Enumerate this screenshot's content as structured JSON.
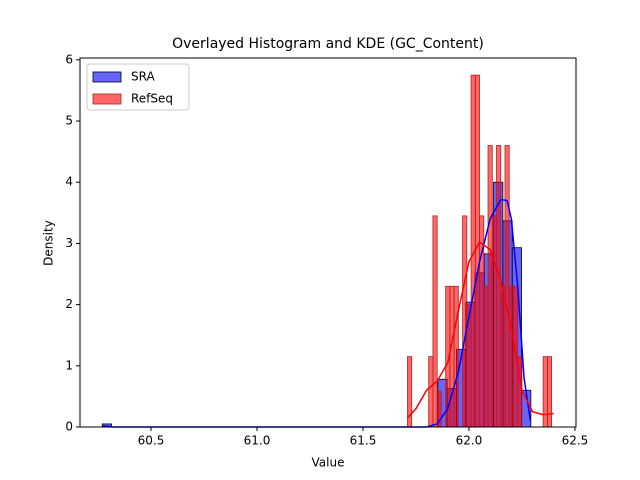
{
  "chart_data": {
    "type": "histogram",
    "title": "Overlayed Histogram and KDE (GC_Content)",
    "xlabel": "Value",
    "ylabel": "Density",
    "xlim": [
      60.165,
      62.505
    ],
    "ylim": [
      0,
      6.03
    ],
    "xticks": [
      60.5,
      {
        "value": 61,
        "label": "61.0"
      },
      61.5,
      {
        "value": 62,
        "label": "62.0"
      },
      62.5
    ],
    "yticks": [
      0,
      1,
      2,
      3,
      4,
      5,
      6
    ],
    "legend": "upper left",
    "series": [
      {
        "name": "SRA",
        "color": "blue",
        "edge": "black",
        "bins": [
          60.27,
          60.314,
          60.358,
          60.402,
          60.446,
          60.49,
          60.534,
          60.578,
          60.622,
          60.666,
          60.71,
          60.754,
          60.798,
          60.841,
          60.885,
          60.929,
          60.973,
          61.017,
          61.061,
          61.105,
          61.149,
          61.193,
          61.237,
          61.281,
          61.325,
          61.369,
          61.413,
          61.457,
          61.501,
          61.545,
          61.589,
          61.633,
          61.677,
          61.721,
          61.765,
          61.809,
          61.853,
          61.897,
          61.941,
          61.985,
          62.028,
          62.072,
          62.116,
          62.16,
          62.204,
          62.248,
          62.292
        ],
        "values": [
          0.05,
          0,
          0,
          0,
          0,
          0,
          0,
          0,
          0,
          0,
          0,
          0,
          0,
          0,
          0,
          0,
          0,
          0,
          0,
          0,
          0,
          0,
          0,
          0,
          0,
          0,
          0,
          0,
          0,
          0,
          0,
          0,
          0,
          0,
          0,
          0,
          0.78,
          0.63,
          1.27,
          2.04,
          2.52,
          2.83,
          4.0,
          3.37,
          2.93,
          0.6
        ],
        "kde": {
          "x": [
            60.27,
            60.32,
            61.8,
            61.85,
            61.9,
            61.95,
            62.0,
            62.05,
            62.1,
            62.15,
            62.18,
            62.2,
            62.23,
            62.26,
            62.29
          ],
          "values": [
            0.02,
            0,
            0,
            0.05,
            0.3,
            0.9,
            1.8,
            2.7,
            3.4,
            3.72,
            3.7,
            3.4,
            2.3,
            0.8,
            0.1
          ]
        }
      },
      {
        "name": "RefSeq",
        "color": "red",
        "edge": "#b22222",
        "bins": [
          61.71,
          61.73,
          61.75,
          61.77,
          61.79,
          61.81,
          61.83,
          61.85,
          61.87,
          61.89,
          61.91,
          61.93,
          61.95,
          61.97,
          61.99,
          62.01,
          62.03,
          62.05,
          62.07,
          62.09,
          62.11,
          62.13,
          62.15,
          62.17,
          62.19,
          62.21,
          62.23,
          62.25,
          62.27,
          62.29,
          62.31,
          62.33,
          62.35,
          62.37,
          62.39,
          62.41
        ],
        "values": [
          1.15,
          0,
          0,
          0,
          0,
          1.15,
          3.45,
          0.58,
          0,
          2.3,
          2.3,
          2.3,
          0,
          3.45,
          2.0,
          5.75,
          5.75,
          3.45,
          2.3,
          4.6,
          3.45,
          4.6,
          2.3,
          4.6,
          2.3,
          2.3,
          1.15,
          0,
          0,
          0,
          0,
          0,
          1.15,
          1.15,
          0
        ],
        "kde": {
          "x": [
            61.71,
            61.75,
            61.8,
            61.85,
            61.9,
            61.95,
            62.0,
            62.05,
            62.1,
            62.15,
            62.2,
            62.25,
            62.3,
            62.35,
            62.4
          ],
          "values": [
            0.15,
            0.3,
            0.6,
            0.75,
            1.05,
            1.9,
            2.7,
            3.02,
            2.9,
            2.4,
            1.6,
            0.6,
            0.25,
            0.2,
            0.22
          ]
        }
      }
    ]
  }
}
